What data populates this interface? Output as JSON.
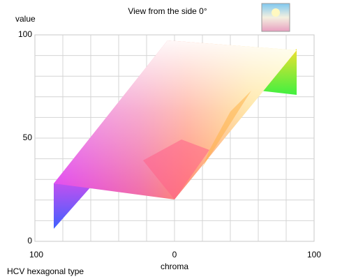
{
  "title": "View from the side 0°",
  "y_axis": {
    "label": "value",
    "ticks": [
      "100",
      "50",
      "0"
    ]
  },
  "x_axis": {
    "label": "chroma",
    "ticks": [
      "100",
      "0",
      "100"
    ]
  },
  "footer": "HCV hexagonal type"
}
